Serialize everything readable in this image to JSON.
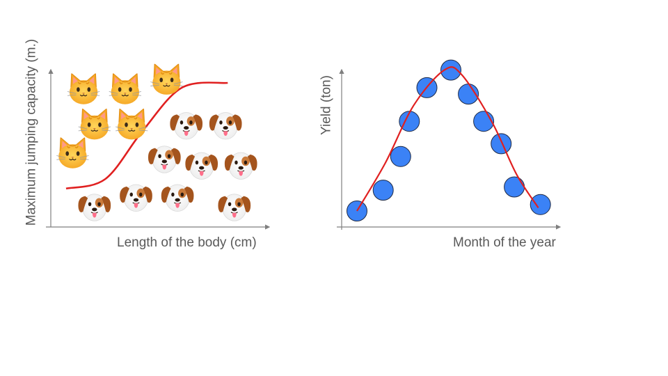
{
  "chart_data": [
    {
      "type": "scatter",
      "title": "",
      "xlabel": "Length of the body (cm)",
      "ylabel": "Maximum jumping capacity (m.)",
      "xlim": [
        0,
        1
      ],
      "ylim": [
        0,
        1
      ],
      "grid": false,
      "series": [
        {
          "name": "",
          "marker": "cat-face-icon",
          "points": [
            {
              "x": 0.15,
              "y": 0.85
            },
            {
              "x": 0.34,
              "y": 0.85
            },
            {
              "x": 0.53,
              "y": 0.91
            },
            {
              "x": 0.2,
              "y": 0.63
            },
            {
              "x": 0.37,
              "y": 0.63
            },
            {
              "x": 0.1,
              "y": 0.45
            }
          ]
        },
        {
          "name": "",
          "marker": "dog-face-icon",
          "points": [
            {
              "x": 0.62,
              "y": 0.64
            },
            {
              "x": 0.8,
              "y": 0.64
            },
            {
              "x": 0.52,
              "y": 0.43
            },
            {
              "x": 0.69,
              "y": 0.39
            },
            {
              "x": 0.87,
              "y": 0.39
            },
            {
              "x": 0.2,
              "y": 0.13
            },
            {
              "x": 0.39,
              "y": 0.19
            },
            {
              "x": 0.58,
              "y": 0.19
            },
            {
              "x": 0.84,
              "y": 0.13
            }
          ]
        }
      ],
      "boundary": {
        "color": "#e02020",
        "points": [
          {
            "x": 0.07,
            "y": 0.24
          },
          {
            "x": 0.25,
            "y": 0.3
          },
          {
            "x": 0.42,
            "y": 0.6
          },
          {
            "x": 0.6,
            "y": 0.87
          },
          {
            "x": 0.81,
            "y": 0.9
          }
        ]
      }
    },
    {
      "type": "scatter",
      "title": "",
      "xlabel": "Month of the year",
      "ylabel": "Yield (ton)",
      "xlim": [
        0,
        1
      ],
      "ylim": [
        0,
        1
      ],
      "grid": false,
      "series": [
        {
          "name": "",
          "color": "#3b82f6",
          "points": [
            {
              "x": 0.07,
              "y": 0.1
            },
            {
              "x": 0.19,
              "y": 0.23
            },
            {
              "x": 0.27,
              "y": 0.44
            },
            {
              "x": 0.31,
              "y": 0.66
            },
            {
              "x": 0.39,
              "y": 0.87
            },
            {
              "x": 0.5,
              "y": 0.98
            },
            {
              "x": 0.58,
              "y": 0.83
            },
            {
              "x": 0.65,
              "y": 0.66
            },
            {
              "x": 0.73,
              "y": 0.52
            },
            {
              "x": 0.79,
              "y": 0.25
            },
            {
              "x": 0.91,
              "y": 0.14
            }
          ]
        }
      ],
      "fit_curve": {
        "color": "#e02020",
        "points": [
          {
            "x": 0.07,
            "y": 0.1
          },
          {
            "x": 0.2,
            "y": 0.4
          },
          {
            "x": 0.33,
            "y": 0.76
          },
          {
            "x": 0.47,
            "y": 0.98
          },
          {
            "x": 0.55,
            "y": 0.95
          },
          {
            "x": 0.69,
            "y": 0.65
          },
          {
            "x": 0.8,
            "y": 0.33
          },
          {
            "x": 0.9,
            "y": 0.12
          }
        ]
      }
    }
  ]
}
